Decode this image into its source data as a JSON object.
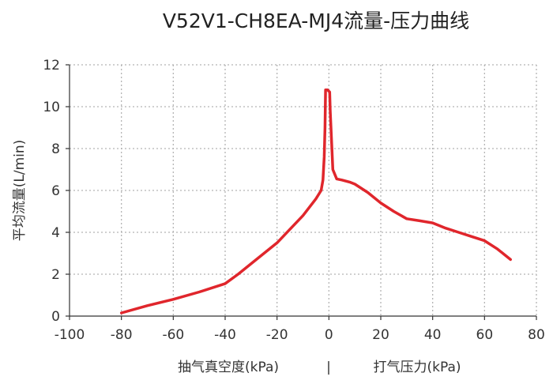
{
  "chart_data": {
    "type": "line",
    "title": "V52V1-CH8EA-MJ4流量-压力曲线",
    "ylabel": "平均流量(L/min)",
    "xlabel_left": "抽气真空度(kPa)",
    "xlabel_separator": "|",
    "xlabel_right": "打气压力(kPa)",
    "xlim": [
      -100,
      80
    ],
    "ylim": [
      0,
      12
    ],
    "xticks": [
      -100,
      -80,
      -60,
      -40,
      -20,
      0,
      20,
      40,
      60,
      80
    ],
    "yticks": [
      0,
      2,
      4,
      6,
      8,
      10,
      12
    ],
    "grid": true,
    "series": [
      {
        "color": "#e0262c",
        "x": [
          -80,
          -70,
          -60,
          -50,
          -40,
          -35,
          -30,
          -20,
          -10,
          -5,
          -3,
          -2.3,
          -1.8,
          -1.5,
          -1.3,
          -0.5,
          0.3,
          0.5,
          1.5,
          3,
          5,
          8,
          10,
          15,
          20,
          25,
          30,
          35,
          40,
          45,
          50,
          55,
          60,
          65,
          70
        ],
        "y": [
          0.15,
          0.5,
          0.8,
          1.15,
          1.55,
          2.0,
          2.5,
          3.5,
          4.8,
          5.6,
          6.0,
          6.5,
          7.6,
          9.0,
          10.8,
          10.8,
          10.7,
          9.8,
          7.0,
          6.55,
          6.5,
          6.4,
          6.3,
          5.9,
          5.4,
          5.0,
          4.65,
          4.55,
          4.45,
          4.2,
          4.0,
          3.8,
          3.6,
          3.2,
          2.7
        ]
      }
    ]
  }
}
